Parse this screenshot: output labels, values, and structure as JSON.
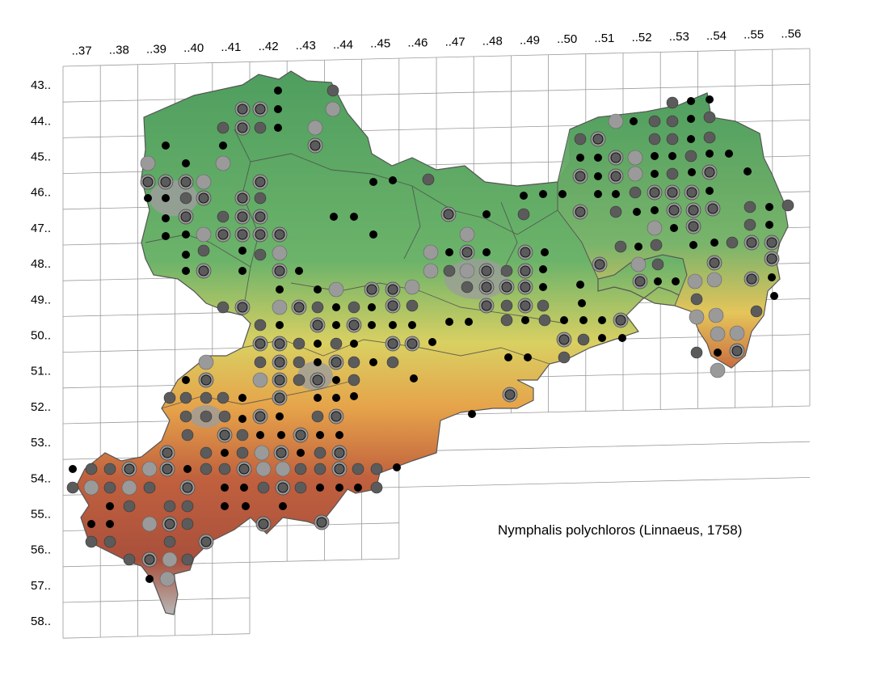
{
  "map": {
    "species_label": "Nymphalis polychloros (Linnaeus, 1758)",
    "column_labels": [
      "..37",
      "..38",
      "..39",
      "..40",
      "..41",
      "..42",
      "..43",
      "..44",
      "..45",
      "..46",
      "..47",
      "..48",
      "..49",
      "..50",
      "..51",
      "..52",
      "..53",
      "..54",
      "..55",
      "..56"
    ],
    "row_labels": [
      "43..",
      "44..",
      "45..",
      "46..",
      "47..",
      "48..",
      "49..",
      "50..",
      "51..",
      "52..",
      "53..",
      "54..",
      "55..",
      "56..",
      "57..",
      "58.."
    ],
    "colors": {
      "grid": "#9a9a9a",
      "lowland": "#5fae67",
      "hills": "#e7c75a",
      "mountains": "#b8563b",
      "urban": "#9c9c9c",
      "marker_black": "#000000",
      "marker_dark": "#5b5b5b",
      "marker_light": "#9a9a9a"
    },
    "legend_note": "",
    "marker_types": [
      "black-dot",
      "dark-grey-dot",
      "light-grey-dot",
      "ringed-dot"
    ]
  }
}
